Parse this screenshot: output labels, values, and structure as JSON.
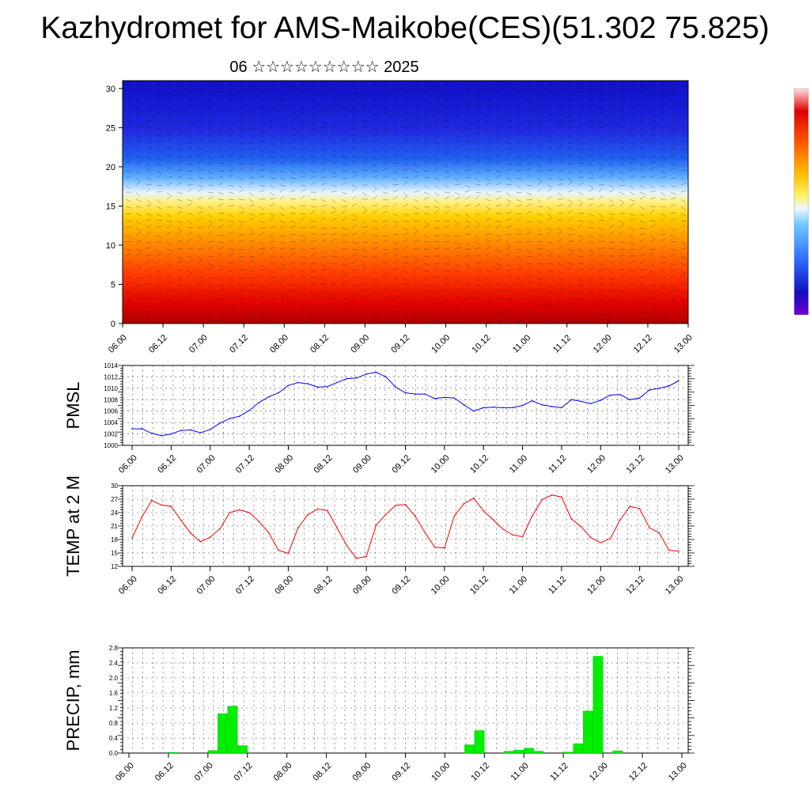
{
  "title": "Kazhydromet for AMS-Maikobe(CES)(51.302 75.825)",
  "subtitle": "06 ☆☆☆☆☆☆☆☆☆ 2025",
  "colors": {
    "pmsl_line": "#0000ff",
    "temp_line": "#ff0000",
    "precip_bar": "#00ee00"
  },
  "chart_data": [
    {
      "type": "heatmap",
      "title": "",
      "x_ticks": [
        "06.00",
        "06.12",
        "07.00",
        "07.12",
        "08.00",
        "08.12",
        "09.00",
        "09.12",
        "10.00",
        "10.12",
        "11.00",
        "11.12",
        "12.00",
        "12.12",
        "13.00"
      ],
      "y_ticks": [
        "0",
        "5",
        "10",
        "15",
        "20",
        "25",
        "30"
      ],
      "ylim": [
        0,
        31
      ],
      "note_colormap": "red near 0 through orange, yellow at about 16, light blue, to dark blue at 30",
      "overlay": "wind streamlines"
    },
    {
      "type": "line",
      "ylabel": "PMSL",
      "ylim": [
        1000,
        1014
      ],
      "y_ticks": [
        "1000",
        "1002",
        "1004",
        "1006",
        "1008",
        "1010",
        "1012",
        "1014"
      ],
      "x_ticks": [
        "06.00",
        "06.12",
        "07.00",
        "07.12",
        "08.00",
        "08.12",
        "09.00",
        "09.12",
        "10.00",
        "10.12",
        "11.00",
        "11.12",
        "12.00",
        "12.12",
        "13.00"
      ],
      "series": [
        {
          "values": [
            1002.9,
            1002.9,
            1002.1,
            1001.7,
            1002.0,
            1002.6,
            1002.7,
            1002.2,
            1002.8,
            1003.9,
            1004.7,
            1005.1,
            1006.1,
            1007.5,
            1008.5,
            1009.2,
            1010.5,
            1011.0,
            1010.8,
            1010.2,
            1010.3,
            1011.0,
            1011.7,
            1011.8,
            1012.5,
            1012.8,
            1012.0,
            1010.2,
            1009.2,
            1009.0,
            1009.0,
            1008.2,
            1008.4,
            1008.3,
            1007.1,
            1006.0,
            1006.6,
            1006.7,
            1006.6,
            1006.6,
            1007.0,
            1007.8,
            1007.1,
            1006.8,
            1006.6,
            1008.0,
            1007.7,
            1007.3,
            1007.9,
            1008.8,
            1008.9,
            1008.0,
            1008.3,
            1009.7,
            1010.0,
            1010.4,
            1011.3
          ]
        }
      ]
    },
    {
      "type": "line",
      "ylabel": "TEMP at 2 M",
      "ylim": [
        12,
        30
      ],
      "y_ticks": [
        "12",
        "15",
        "18",
        "21",
        "24",
        "27",
        "30"
      ],
      "x_ticks": [
        "06.00",
        "06.12",
        "07.00",
        "07.12",
        "08.00",
        "08.12",
        "09.00",
        "09.12",
        "10.00",
        "10.12",
        "11.00",
        "11.12",
        "12.00",
        "12.12",
        "13.00"
      ],
      "series": [
        {
          "values": [
            18.3,
            23.0,
            26.7,
            25.7,
            25.4,
            22.3,
            19.4,
            17.5,
            18.5,
            20.4,
            24.0,
            24.6,
            24.0,
            22.0,
            19.5,
            15.6,
            14.9,
            20.6,
            23.5,
            24.8,
            24.5,
            20.6,
            16.6,
            13.8,
            14.2,
            21.2,
            23.6,
            25.6,
            25.8,
            23.2,
            19.6,
            16.3,
            16.1,
            23.2,
            26.0,
            27.2,
            24.4,
            22.4,
            20.3,
            19.0,
            18.6,
            23.3,
            26.9,
            27.9,
            27.5,
            22.6,
            20.9,
            18.4,
            17.3,
            18.2,
            22.4,
            25.4,
            24.9,
            20.6,
            19.5,
            15.6,
            15.4
          ]
        }
      ]
    },
    {
      "type": "bar",
      "ylabel": "PRECIP, mm",
      "ylim": [
        0,
        2.8
      ],
      "y_ticks": [
        "0.0",
        "0.4",
        "0.8",
        "1.2",
        "1.6",
        "2.0",
        "2.4",
        "2.8"
      ],
      "x_ticks": [
        "06.00",
        "06.12",
        "07.00",
        "07.12",
        "08.00",
        "08.12",
        "09.00",
        "09.12",
        "10.00",
        "10.12",
        "11.00",
        "11.12",
        "12.00",
        "12.12",
        "13.00"
      ],
      "series": [
        {
          "values": [
            0,
            0,
            0,
            0,
            0.02,
            0,
            0,
            0,
            0.07,
            1.05,
            1.25,
            0.2,
            0,
            0,
            0,
            0,
            0,
            0,
            0,
            0,
            0,
            0,
            0,
            0,
            0,
            0,
            0,
            0,
            0,
            0,
            0,
            0,
            0,
            0,
            0.22,
            0.6,
            0,
            0,
            0.05,
            0.08,
            0.13,
            0.05,
            0,
            0,
            0.03,
            0.25,
            1.12,
            2.58,
            0,
            0.06,
            0,
            0,
            0,
            0,
            0,
            0
          ]
        }
      ]
    }
  ]
}
